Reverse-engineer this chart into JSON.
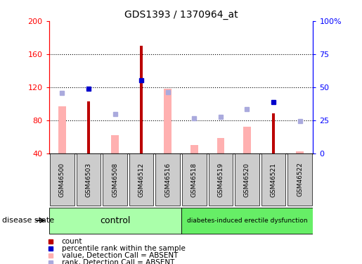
{
  "title": "GDS1393 / 1370964_at",
  "samples": [
    "GSM46500",
    "GSM46503",
    "GSM46508",
    "GSM46512",
    "GSM46516",
    "GSM46518",
    "GSM46519",
    "GSM46520",
    "GSM46521",
    "GSM46522"
  ],
  "count_values": [
    null,
    103,
    null,
    170,
    null,
    null,
    null,
    null,
    88,
    null
  ],
  "percentile_values": [
    null,
    118,
    null,
    128,
    null,
    null,
    null,
    null,
    102,
    null
  ],
  "pink_values": [
    97,
    null,
    62,
    null,
    118,
    50,
    58,
    72,
    null,
    42
  ],
  "lightblue_values": [
    113,
    null,
    87,
    null,
    114,
    82,
    84,
    93,
    null,
    79
  ],
  "ylim_left": [
    40,
    200
  ],
  "ylim_right": [
    0,
    100
  ],
  "yticks_left": [
    40,
    80,
    120,
    160,
    200
  ],
  "yticks_right": [
    0,
    25,
    50,
    75,
    100
  ],
  "ytick_labels_right": [
    "0",
    "25",
    "50",
    "75",
    "100%"
  ],
  "control_label": "control",
  "disease_label": "diabetes-induced erectile dysfunction",
  "disease_state_label": "disease state",
  "bar_color_count": "#bb0000",
  "bar_color_percentile": "#0000cc",
  "bar_color_pink": "#ffb0b0",
  "bar_color_lightblue": "#aaaadd",
  "control_bg": "#aaffaa",
  "disease_bg": "#66ee66",
  "xlabel_bg": "#cccccc",
  "legend_items": [
    {
      "color": "#bb0000",
      "label": "count"
    },
    {
      "color": "#0000cc",
      "label": "percentile rank within the sample"
    },
    {
      "color": "#ffb0b0",
      "label": "value, Detection Call = ABSENT"
    },
    {
      "color": "#aaaadd",
      "label": "rank, Detection Call = ABSENT"
    }
  ],
  "pink_bar_width": 0.28,
  "red_bar_width": 0.12,
  "n_control": 5
}
